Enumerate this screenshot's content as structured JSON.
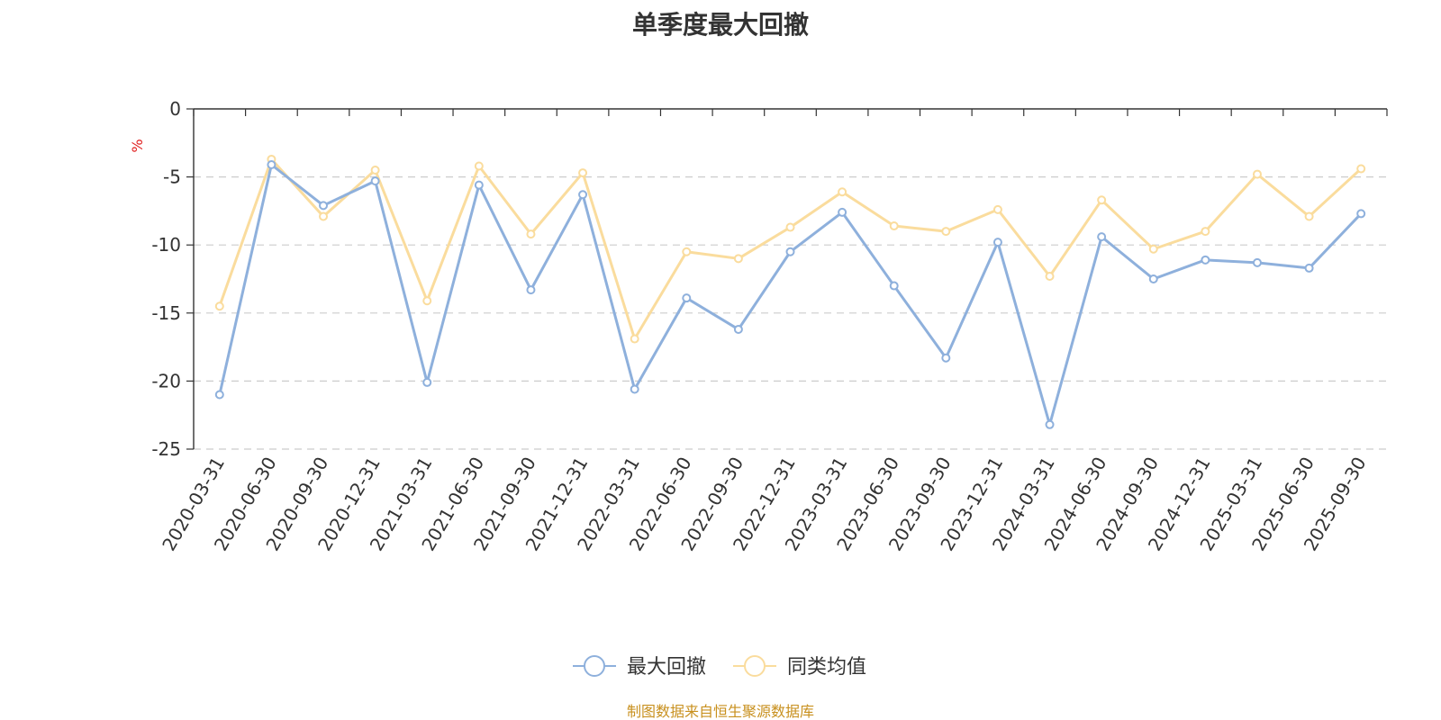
{
  "chart_data": {
    "type": "line",
    "title": "单季度最大回撤",
    "ylabel": "%",
    "xlabel": "",
    "ylim": [
      -25,
      0
    ],
    "yticks": [
      0,
      -5,
      -10,
      -15,
      -20,
      -25
    ],
    "grid": true,
    "legend_position": "bottom-center",
    "categories": [
      "2020-03-31",
      "2020-06-30",
      "2020-09-30",
      "2020-12-31",
      "2021-03-31",
      "2021-06-30",
      "2021-09-30",
      "2021-12-31",
      "2022-03-31",
      "2022-06-30",
      "2022-09-30",
      "2022-12-31",
      "2023-03-31",
      "2023-06-30",
      "2023-09-30",
      "2023-12-31",
      "2024-03-31",
      "2024-06-30",
      "2024-09-30",
      "2024-12-31",
      "2025-03-31",
      "2025-06-30",
      "2025-09-30"
    ],
    "series": [
      {
        "name": "最大回撤",
        "color": "#8eb0dc",
        "values": [
          -21.0,
          -4.1,
          -7.1,
          -5.3,
          -20.1,
          -5.6,
          -13.3,
          -6.3,
          -20.6,
          -13.9,
          -16.2,
          -10.5,
          -7.6,
          -13.0,
          -18.3,
          -9.8,
          -23.2,
          -9.4,
          -12.5,
          -11.1,
          -11.3,
          -11.7,
          -7.7
        ]
      },
      {
        "name": "同类均值",
        "color": "#fadc9d",
        "values": [
          -14.5,
          -3.7,
          -7.9,
          -4.5,
          -14.1,
          -4.2,
          -9.2,
          -4.7,
          -16.9,
          -10.5,
          -11.0,
          -8.7,
          -6.1,
          -8.6,
          -9.0,
          -7.4,
          -12.3,
          -6.7,
          -10.3,
          -9.0,
          -4.8,
          -7.9,
          -4.4
        ]
      }
    ]
  },
  "source_text": "制图数据来自恒生聚源数据库",
  "source_color": "#c8901e",
  "ylabel_color": "#e02020"
}
